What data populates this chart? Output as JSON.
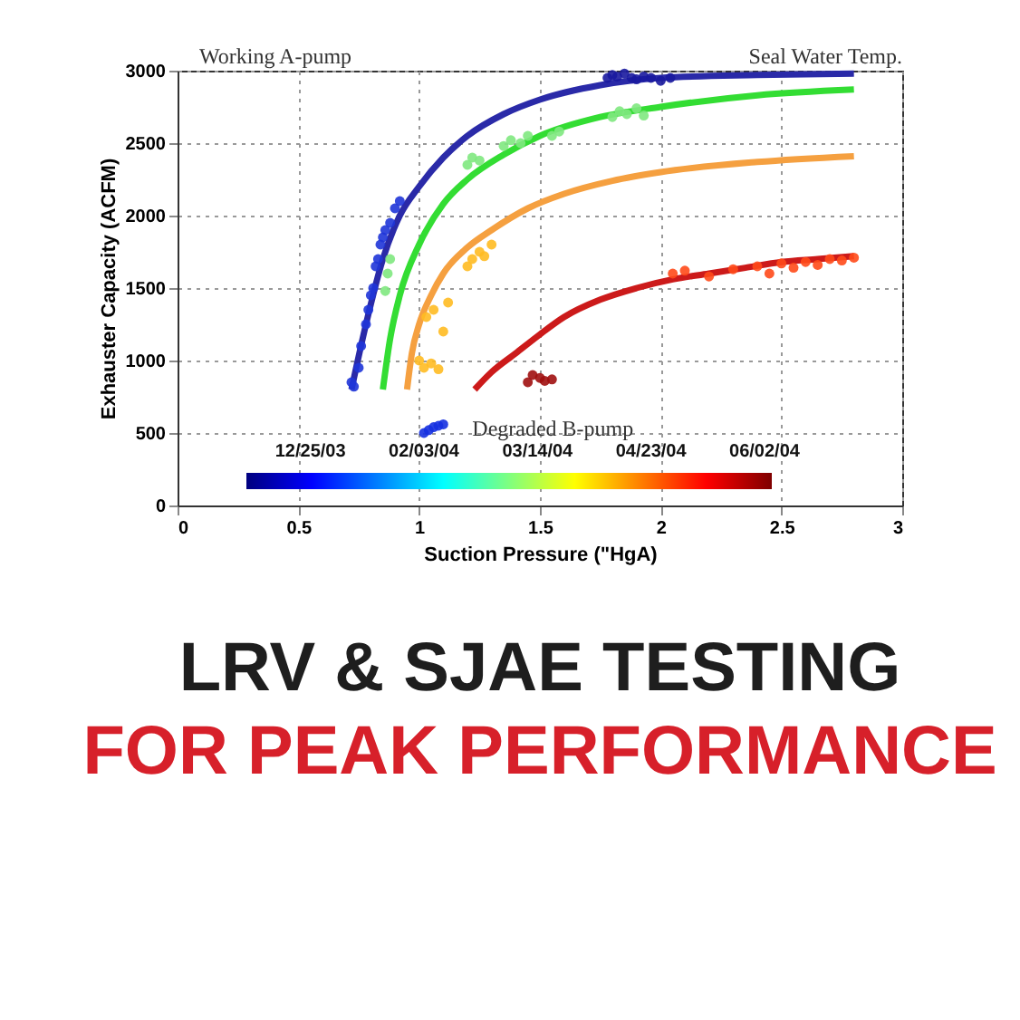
{
  "chart_data": {
    "type": "scatter",
    "title": "LRV & SJAE TESTING",
    "subtitle": "FOR PEAK PERFORMANCE",
    "xlabel": "Suction Pressure (\"HgA)",
    "ylabel": "Exhauster Capacity (ACFM)",
    "xlim": [
      0,
      3
    ],
    "ylim": [
      0,
      3000
    ],
    "xticks": [
      0,
      0.5,
      1,
      1.5,
      2,
      2.5,
      3
    ],
    "yticks": [
      0,
      500,
      1000,
      1500,
      2000,
      2500,
      3000
    ],
    "grid": true,
    "annotations": [
      "Working A-pump",
      "Seal Water Temp.",
      {
        "text": "Degraded B-pump",
        "x": 1.07,
        "y": 530
      },
      "12/25/03",
      "02/03/04",
      "03/14/04",
      "04/23/04",
      "06/02/04"
    ],
    "series": [
      {
        "type": "line",
        "color": "#2a2aa8",
        "x": [
          0.72,
          0.78,
          0.85,
          0.92,
          1.0,
          1.1,
          1.2,
          1.35,
          1.5,
          1.75,
          2.0,
          2.4,
          2.8
        ],
        "values": [
          800,
          1250,
          1700,
          2000,
          2200,
          2400,
          2550,
          2700,
          2800,
          2900,
          2950,
          2970,
          2980
        ]
      },
      {
        "type": "line",
        "color": "#33dd33",
        "x": [
          0.85,
          0.88,
          0.92,
          1.0,
          1.1,
          1.2,
          1.35,
          1.5,
          1.75,
          2.0,
          2.4,
          2.8
        ],
        "values": [
          800,
          1150,
          1450,
          1800,
          2080,
          2250,
          2420,
          2550,
          2680,
          2750,
          2830,
          2870
        ]
      },
      {
        "type": "line",
        "color": "#f5a040",
        "x": [
          0.95,
          0.97,
          1.0,
          1.05,
          1.1,
          1.2,
          1.3,
          1.45,
          1.6,
          1.8,
          2.0,
          2.4,
          2.8
        ],
        "values": [
          800,
          1050,
          1250,
          1450,
          1600,
          1780,
          1900,
          2050,
          2150,
          2240,
          2300,
          2370,
          2410
        ]
      },
      {
        "type": "line",
        "color": "#cc1a1a",
        "x": [
          1.23,
          1.3,
          1.4,
          1.5,
          1.6,
          1.75,
          1.9,
          2.05,
          2.2,
          2.35,
          2.5,
          2.65,
          2.8
        ],
        "values": [
          800,
          920,
          1050,
          1180,
          1300,
          1420,
          1500,
          1560,
          1600,
          1640,
          1680,
          1700,
          1720
        ]
      },
      {
        "color": "#1f35d8",
        "x": [
          0.72,
          0.73,
          0.75,
          0.76,
          0.78,
          0.79,
          0.8,
          0.81,
          0.82,
          0.83,
          0.84,
          0.85,
          0.86,
          0.88,
          0.9,
          0.92
        ],
        "values": [
          850,
          820,
          950,
          1100,
          1250,
          1350,
          1450,
          1500,
          1650,
          1700,
          1800,
          1850,
          1900,
          1950,
          2050,
          2100
        ]
      },
      {
        "color": "#1a1a9e",
        "x": [
          1.78,
          1.8,
          1.82,
          1.85,
          1.88,
          1.9,
          1.93,
          1.96,
          2.0,
          2.04
        ],
        "values": [
          2950,
          2970,
          2960,
          2980,
          2950,
          2940,
          2960,
          2950,
          2930,
          2950
        ]
      },
      {
        "color": "#1530e0",
        "x": [
          1.02,
          1.04,
          1.06,
          1.08,
          1.1
        ],
        "values": [
          500,
          520,
          540,
          550,
          560
        ]
      },
      {
        "color": "#80e880",
        "x": [
          0.86,
          0.87,
          0.88,
          1.2,
          1.22,
          1.25,
          1.35,
          1.38,
          1.42,
          1.45,
          1.55,
          1.58,
          1.8,
          1.83,
          1.86,
          1.9,
          1.93
        ],
        "values": [
          1480,
          1600,
          1700,
          2350,
          2400,
          2380,
          2480,
          2520,
          2500,
          2550,
          2550,
          2580,
          2680,
          2720,
          2700,
          2740,
          2690
        ]
      },
      {
        "color": "#ffbb22",
        "x": [
          1.0,
          1.02,
          1.03,
          1.05,
          1.06,
          1.08,
          1.1,
          1.12,
          1.2,
          1.22,
          1.25,
          1.27,
          1.3
        ],
        "values": [
          1000,
          950,
          1300,
          980,
          1350,
          940,
          1200,
          1400,
          1650,
          1700,
          1750,
          1720,
          1800
        ]
      },
      {
        "color": "#ff4a1a",
        "x": [
          2.05,
          2.1,
          2.2,
          2.3,
          2.4,
          2.45,
          2.5,
          2.55,
          2.6,
          2.65,
          2.7,
          2.75,
          2.8
        ],
        "values": [
          1600,
          1620,
          1580,
          1630,
          1650,
          1600,
          1670,
          1640,
          1680,
          1660,
          1700,
          1690,
          1710
        ]
      },
      {
        "color": "#a01010",
        "x": [
          1.45,
          1.47,
          1.5,
          1.52,
          1.55
        ],
        "values": [
          850,
          900,
          880,
          860,
          870
        ]
      }
    ]
  }
}
